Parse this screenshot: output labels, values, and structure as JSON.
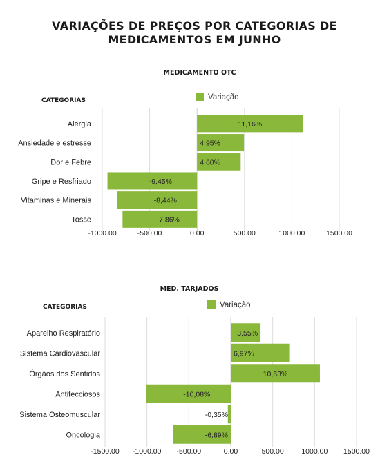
{
  "title_line1": "VARIAÇÕES DE PREÇOS POR CATEGORIAS DE",
  "title_line2": "MEDICAMENTOS EM JUNHO",
  "bar_color": "#8ab83a",
  "chart_data": [
    {
      "type": "bar",
      "orientation": "horizontal",
      "title": "MEDICAMENTO OTC",
      "category_header": "CATEGORIAS",
      "legend": "Variação",
      "legend_position": "top",
      "grid": true,
      "categories": [
        "Alergia",
        "Ansiedade e estresse",
        "Dor e Febre",
        "Gripe e Resfriado",
        "Vitaminas e Minerais",
        "Tosse"
      ],
      "values": [
        1116,
        495,
        460,
        -945,
        -844,
        -786
      ],
      "data_labels": [
        "11,16%",
        "4,95%",
        "4,60%",
        "-9,45%",
        "-8,44%",
        "-7,86%"
      ],
      "xlim": [
        -1000,
        1500
      ],
      "xticks": [
        -1000,
        -500,
        0,
        500,
        1000,
        1500
      ],
      "xtick_labels": [
        "-1000.00",
        "-500.00",
        "0.00",
        "500.00",
        "1000.00",
        "1500.00"
      ]
    },
    {
      "type": "bar",
      "orientation": "horizontal",
      "title": "MED. TARJADOS",
      "category_header": "CATEGORIAS",
      "legend": "Variação",
      "legend_position": "top",
      "grid": true,
      "categories": [
        "Aparelho Respiratório",
        "Sistema Cardiovascular",
        "Órgãos dos Sentidos",
        "Antifecciosos",
        "Sistema Osteomuscular",
        "Oncologia"
      ],
      "values": [
        355,
        697,
        1063,
        -1008,
        -35,
        -689
      ],
      "data_labels": [
        "3,55%",
        "6,97%",
        "10,63%",
        "-10,08%",
        "-0,35%",
        "-6,89%"
      ],
      "xlim": [
        -1500,
        1500
      ],
      "xticks": [
        -1500,
        -1000,
        -500,
        0,
        500,
        1000,
        1500
      ],
      "xtick_labels": [
        "-1500.00",
        "-1000.00",
        "-500.00",
        "0.00",
        "500.00",
        "1000.00",
        "1500.00"
      ]
    }
  ]
}
